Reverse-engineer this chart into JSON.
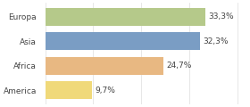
{
  "categories": [
    "Europa",
    "Asia",
    "Africa",
    "America"
  ],
  "values": [
    33.3,
    32.3,
    24.7,
    9.7
  ],
  "labels": [
    "33,3%",
    "32,3%",
    "24,7%",
    "9,7%"
  ],
  "bar_colors": [
    "#b5c98a",
    "#7a9dc4",
    "#e8b882",
    "#f0d97a"
  ],
  "background_color": "#ffffff",
  "xlim": [
    0,
    42
  ],
  "bar_height": 0.72,
  "label_fontsize": 6.5,
  "category_fontsize": 6.5,
  "grid_color": "#dddddd"
}
